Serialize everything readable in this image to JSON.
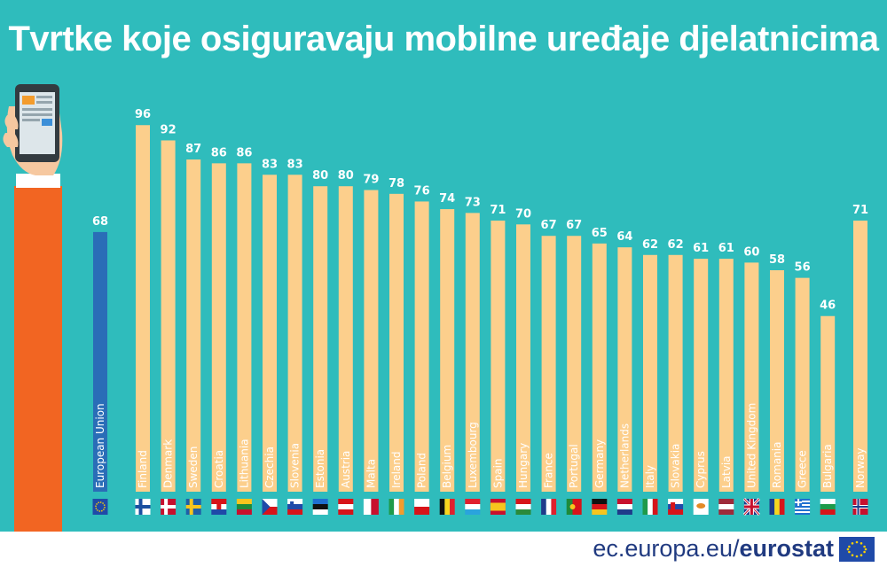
{
  "title": "Tvrtke koje osiguravaju mobilne uređaje djelatnicima",
  "footer": {
    "site": "ec.europa.eu/",
    "brand": "eurostat"
  },
  "colors": {
    "background": "#2fbcbc",
    "bar": "#fccf8c",
    "eu_bar": "#2a6db7",
    "text": "#ffffff"
  },
  "chart_data": {
    "type": "bar",
    "title": "Tvrtke koje osiguravaju mobilne uređaje djelatnicima",
    "xlabel": "",
    "ylabel": "",
    "ylim": [
      0,
      100
    ],
    "categories": [
      "European Union",
      "Finland",
      "Denmark",
      "Sweden",
      "Croatia",
      "Lithuania",
      "Czechia",
      "Slovenia",
      "Estonia",
      "Austria",
      "Malta",
      "Ireland",
      "Poland",
      "Belgium",
      "Luxembourg",
      "Spain",
      "Hungary",
      "France",
      "Portugal",
      "Germany",
      "Netherlands",
      "Italy",
      "Slovakia",
      "Cyprus",
      "Latvia",
      "United Kingdom",
      "Romania",
      "Greece",
      "Bulgaria",
      "Norway"
    ],
    "values": [
      68,
      96,
      92,
      87,
      86,
      86,
      83,
      83,
      80,
      80,
      79,
      78,
      76,
      74,
      73,
      71,
      70,
      67,
      67,
      65,
      64,
      62,
      62,
      61,
      61,
      60,
      58,
      56,
      46,
      71
    ],
    "data_labels": [
      "68",
      "96",
      "92",
      "87",
      "86",
      "86",
      "83",
      "83",
      "80",
      "80",
      "79",
      "78",
      "76",
      "74",
      "73",
      "71",
      "70",
      "67",
      "67",
      "65",
      "64",
      "62",
      "62",
      "61",
      "61",
      "60",
      "58",
      "56",
      "46",
      "71"
    ],
    "highlight": "European Union",
    "flags": [
      "eu",
      "fi",
      "dk",
      "se",
      "hr",
      "lt",
      "cz",
      "si",
      "ee",
      "at",
      "mt",
      "ie",
      "pl",
      "be",
      "lu",
      "es",
      "hu",
      "fr",
      "pt",
      "de",
      "nl",
      "it",
      "sk",
      "cy",
      "lv",
      "uk",
      "ro",
      "gr",
      "bg",
      "no"
    ],
    "grid": false,
    "legend": "none"
  }
}
